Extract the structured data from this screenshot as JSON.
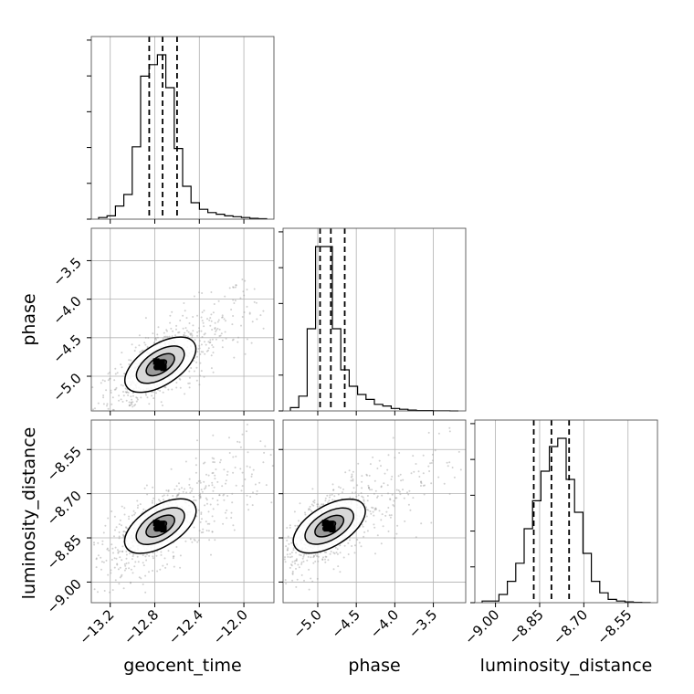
{
  "chart_data": {
    "type": "corner",
    "parameters": [
      "geocent_time",
      "phase",
      "luminosity_distance"
    ],
    "ranges": {
      "geocent_time": [
        -13.37,
        -11.73
      ],
      "phase": [
        -5.45,
        -3.08
      ],
      "luminosity_distance": [
        -9.07,
        -8.45
      ]
    },
    "ticks": {
      "geocent_time": [
        -13.2,
        -12.8,
        -12.4,
        -12.0
      ],
      "phase": [
        -5.0,
        -4.5,
        -4.0,
        -3.5
      ],
      "luminosity_distance": [
        -9.0,
        -8.85,
        -8.7,
        -8.55
      ]
    },
    "tick_labels": {
      "geocent_time": [
        "−13.2",
        "−12.8",
        "−12.4",
        "−12.0"
      ],
      "phase": [
        "−5.0",
        "−4.5",
        "−4.0",
        "−3.5"
      ],
      "luminosity_distance": [
        "−9.00",
        "−8.85",
        "−8.70",
        "−8.55"
      ]
    },
    "quantiles": {
      "geocent_time": [
        -12.85,
        -12.73,
        -12.6
      ],
      "phase": [
        -4.97,
        -4.83,
        -4.65
      ],
      "luminosity_distance": [
        -8.87,
        -8.81,
        -8.75
      ]
    },
    "histograms": {
      "geocent_time": [
        0.01,
        0.02,
        0.08,
        0.15,
        0.44,
        0.87,
        0.94,
        1.0,
        0.8,
        0.43,
        0.2,
        0.1,
        0.06,
        0.04,
        0.03,
        0.02,
        0.015,
        0.01,
        0.005,
        0.003
      ],
      "phase": [
        0.02,
        0.09,
        0.5,
        1.0,
        1.0,
        0.5,
        0.25,
        0.15,
        0.1,
        0.07,
        0.04,
        0.03,
        0.015,
        0.01,
        0.005,
        0.002,
        0.002,
        0.001,
        0.001,
        0.0
      ],
      "luminosity_distance": [
        0.01,
        0.01,
        0.05,
        0.13,
        0.24,
        0.45,
        0.62,
        0.8,
        0.95,
        1.0,
        0.75,
        0.55,
        0.3,
        0.13,
        0.06,
        0.02,
        0.01,
        0.005,
        0.002,
        0.001
      ]
    },
    "peak": {
      "geocent_time": -12.75,
      "phase": -4.85,
      "luminosity_distance": -8.81
    },
    "pairs": [
      {
        "x": "geocent_time",
        "y": "phase",
        "rho": 0.78
      },
      {
        "x": "geocent_time",
        "y": "luminosity_distance",
        "rho": 0.75
      },
      {
        "x": "phase",
        "y": "luminosity_distance",
        "rho": 0.72
      }
    ],
    "grid": true,
    "colors": {
      "line": "#000000",
      "points": "#9a9a9a",
      "grid": "#b0b0b0"
    }
  }
}
